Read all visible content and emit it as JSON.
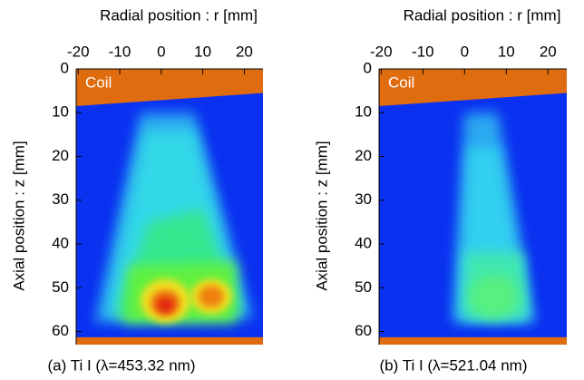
{
  "chart_data": [
    {
      "type": "image",
      "title": "Radial position : r [mm]",
      "y_label": "Axial position : z [mm]",
      "caption": "(a) Ti I (λ=453.32 nm)",
      "annotation": "Coil",
      "xlim": [
        -20.5,
        24.5
      ],
      "xticks": [
        -20,
        -10,
        0,
        10,
        20
      ],
      "ylim": [
        0,
        63
      ],
      "yticks": [
        0,
        10,
        20,
        30,
        40,
        50,
        60
      ]
    },
    {
      "type": "image",
      "title": "Radial position : r [mm]",
      "y_label": "Axial position : z [mm]",
      "caption": "(b) Ti I (λ=521.04 nm)",
      "annotation": "Coil",
      "xlim": [
        -20.5,
        24.5
      ],
      "xticks": [
        -20,
        -10,
        0,
        10,
        20
      ],
      "ylim": [
        0,
        63
      ],
      "yticks": [
        0,
        10,
        20,
        30,
        40,
        50,
        60
      ]
    }
  ]
}
